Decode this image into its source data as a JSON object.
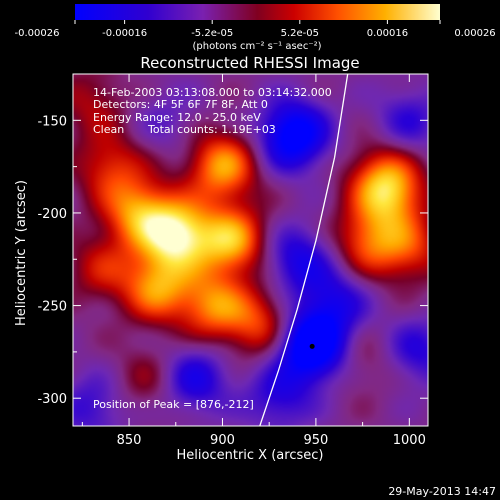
{
  "colorbar": {
    "ticks": [
      "-0.00026",
      "-0.00016",
      "-5.2e-05",
      "5.2e-05",
      "0.00016",
      "0.00026"
    ],
    "unit_label": "(photons cm⁻² s⁻¹ asec⁻²)",
    "range": [
      -0.00026,
      0.00026
    ]
  },
  "chart_data": {
    "type": "heatmap",
    "title": "Reconstructed RHESSI Image",
    "xlabel": "Heliocentric X (arcsec)",
    "ylabel": "Heliocentric Y (arcsec)",
    "xlim": [
      820,
      1010
    ],
    "ylim": [
      -315,
      -125
    ],
    "xticks": [
      850,
      900,
      950,
      1000
    ],
    "yticks": [
      -150,
      -200,
      -250,
      -300
    ],
    "xtick_labels": [
      "850",
      "900",
      "950",
      "1000"
    ],
    "ytick_labels": [
      "-150",
      "-200",
      "-250",
      "-300"
    ],
    "peak": [
      876,
      -212
    ],
    "blobs": [
      {
        "x": 876,
        "y": -212,
        "v": 1.0
      },
      {
        "x": 900,
        "y": -175,
        "v": 0.75
      },
      {
        "x": 905,
        "y": -215,
        "v": 0.8
      },
      {
        "x": 855,
        "y": -200,
        "v": 0.7
      },
      {
        "x": 865,
        "y": -240,
        "v": 0.7
      },
      {
        "x": 895,
        "y": -250,
        "v": 0.65
      },
      {
        "x": 840,
        "y": -175,
        "v": 0.45
      },
      {
        "x": 920,
        "y": -260,
        "v": 0.5
      },
      {
        "x": 835,
        "y": -230,
        "v": 0.35
      },
      {
        "x": 990,
        "y": -190,
        "v": 0.65
      },
      {
        "x": 978,
        "y": -215,
        "v": 0.55
      },
      {
        "x": 1000,
        "y": -220,
        "v": 0.45
      },
      {
        "x": 985,
        "y": -180,
        "v": 0.4
      },
      {
        "x": 975,
        "y": -280,
        "v": 0.2
      },
      {
        "x": 860,
        "y": -290,
        "v": 0.25
      },
      {
        "x": 830,
        "y": -140,
        "v": 0.3
      },
      {
        "x": 948,
        "y": -272,
        "v": -1.0
      },
      {
        "x": 938,
        "y": -158,
        "v": -0.85
      },
      {
        "x": 940,
        "y": -225,
        "v": -0.5
      },
      {
        "x": 960,
        "y": -248,
        "v": -0.45
      },
      {
        "x": 885,
        "y": -290,
        "v": -0.5
      },
      {
        "x": 1005,
        "y": -275,
        "v": -0.4
      },
      {
        "x": 1000,
        "y": -150,
        "v": -0.35
      },
      {
        "x": 930,
        "y": -300,
        "v": -0.4
      },
      {
        "x": 830,
        "y": -305,
        "v": -0.35
      },
      {
        "x": 870,
        "y": -150,
        "v": -0.2
      }
    ],
    "limb_curve": [
      [
        920,
        -315
      ],
      [
        930,
        -285
      ],
      [
        940,
        -252
      ],
      [
        950,
        -215
      ],
      [
        960,
        -170
      ],
      [
        967,
        -125
      ]
    ],
    "annotations": {
      "time": "14-Feb-2003 03:13:08.000 to 03:14:32.000",
      "detectors": "Detectors: 4F 5F 6F 7F 8F, Att 0",
      "energy": "Energy Range: 12.0 - 25.0 keV",
      "clean": "Clean",
      "counts": "Total counts: 1.19E+03",
      "peak_text": "Position of Peak = [876,-212]"
    }
  },
  "footer_date": "29-May-2013 14:47"
}
